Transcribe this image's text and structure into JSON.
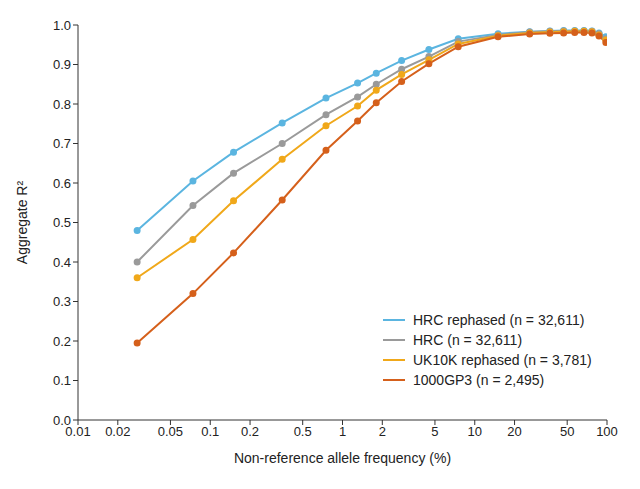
{
  "chart_data": {
    "type": "line",
    "x_label": "Non-reference allele frequency (%)",
    "y_label": "Aggregate R²",
    "x": [
      0.028,
      0.074,
      0.15,
      0.35,
      0.75,
      1.3,
      1.8,
      2.8,
      4.5,
      7.5,
      15,
      26,
      37,
      47,
      57,
      67,
      77,
      87,
      98
    ],
    "series": [
      {
        "name": "HRC rephased (n = 32,611)",
        "color": "#5bb5e0",
        "values": [
          0.48,
          0.605,
          0.678,
          0.752,
          0.815,
          0.853,
          0.878,
          0.91,
          0.938,
          0.965,
          0.978,
          0.983,
          0.985,
          0.986,
          0.986,
          0.986,
          0.985,
          0.98,
          0.97
        ]
      },
      {
        "name": "HRC (n = 32,611)",
        "color": "#9a9a9a",
        "values": [
          0.4,
          0.543,
          0.625,
          0.7,
          0.773,
          0.818,
          0.85,
          0.888,
          0.92,
          0.958,
          0.975,
          0.982,
          0.984,
          0.985,
          0.985,
          0.985,
          0.984,
          0.978,
          0.965
        ]
      },
      {
        "name": "UK10K rephased (n = 3,781)",
        "color": "#f0a81a",
        "values": [
          0.36,
          0.457,
          0.555,
          0.66,
          0.745,
          0.795,
          0.835,
          0.875,
          0.912,
          0.952,
          0.973,
          0.98,
          0.982,
          0.983,
          0.984,
          0.984,
          0.983,
          0.975,
          0.962
        ]
      },
      {
        "name": "1000GP3 (n = 2,495)",
        "color": "#d5601b",
        "values": [
          0.195,
          0.32,
          0.423,
          0.557,
          0.683,
          0.757,
          0.803,
          0.857,
          0.902,
          0.945,
          0.97,
          0.977,
          0.979,
          0.98,
          0.981,
          0.981,
          0.98,
          0.972,
          0.956
        ]
      }
    ],
    "log": "x",
    "xlim": [
      0.01,
      100
    ],
    "xticks": [
      0.01,
      0.02,
      0.05,
      0.1,
      0.2,
      0.5,
      1,
      2,
      5,
      10,
      20,
      50,
      100
    ],
    "ylim": [
      0,
      1
    ],
    "yticks": [
      {
        "value": 0,
        "label": "0.0"
      },
      0.1,
      0.2,
      0.3,
      0.4,
      0.5,
      0.6,
      0.7,
      0.8,
      0.9,
      {
        "value": 1,
        "label": "1.0"
      }
    ],
    "grid": false,
    "legend": "lower right",
    "marker": "circle"
  }
}
